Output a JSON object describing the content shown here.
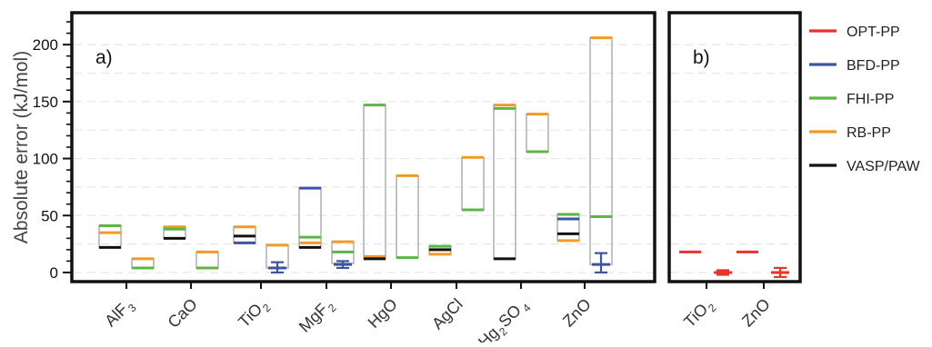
{
  "chart_data": {
    "type": "box",
    "ylabel": "Absolute error (kJ/mol)",
    "ylim": [
      -8,
      228
    ],
    "yticks": [
      0,
      50,
      100,
      150,
      200
    ],
    "grid": {
      "horizontal_dashed": true,
      "minor_tick_step": 10
    },
    "legend": {
      "placement": "right",
      "entries": [
        {
          "name": "OPT-PP",
          "color": "#e8332a"
        },
        {
          "name": "BFD-PP",
          "color": "#3b55a4"
        },
        {
          "name": "FHI-PP",
          "color": "#5cb646"
        },
        {
          "name": "RB-PP",
          "color": "#f39a24"
        },
        {
          "name": "VASP/PAW",
          "color": "#111111"
        }
      ]
    },
    "panels": [
      {
        "label": "a)",
        "categories": [
          {
            "base": "AlF",
            "sub": "3"
          },
          {
            "base": "CaO",
            "sub": ""
          },
          {
            "base": "TiO",
            "sub": "2"
          },
          {
            "base": "MgF",
            "sub": "2"
          },
          {
            "base": "HgO",
            "sub": ""
          },
          {
            "base": "AgCl",
            "sub": ""
          },
          {
            "base": "Hg",
            "sub": "2",
            "base2": "SO",
            "sub2": "4"
          },
          {
            "base": "ZnO",
            "sub": ""
          }
        ],
        "groups": [
          {
            "category": 0,
            "offset": -1,
            "box": [
              22,
              41
            ],
            "marks": {
              "FHI-PP": 41,
              "RB-PP": 35,
              "VASP/PAW": 22
            }
          },
          {
            "category": 0,
            "offset": 1,
            "box": [
              4,
              12
            ],
            "marks": {
              "RB-PP": 12,
              "FHI-PP": 4
            }
          },
          {
            "category": 1,
            "offset": -1,
            "box": [
              30,
              40
            ],
            "marks": {
              "RB-PP": 40,
              "FHI-PP": 38,
              "VASP/PAW": 30
            }
          },
          {
            "category": 1,
            "offset": 1,
            "box": [
              4,
              18
            ],
            "marks": {
              "RB-PP": 18,
              "FHI-PP": 4
            }
          },
          {
            "category": 2,
            "offset": -1,
            "box": [
              26,
              40
            ],
            "marks": {
              "RB-PP": 40,
              "VASP/PAW": 32,
              "BFD-PP": 26
            }
          },
          {
            "category": 2,
            "offset": 1,
            "box": [
              4,
              24
            ],
            "marks": {
              "RB-PP": 24
            },
            "errorbar": {
              "series": "BFD-PP",
              "center": 4,
              "low": 0,
              "high": 9
            }
          },
          {
            "category": 3,
            "offset": -1,
            "box": [
              22,
              74
            ],
            "marks": {
              "BFD-PP": 74,
              "FHI-PP": 31,
              "RB-PP": 26,
              "VASP/PAW": 22
            }
          },
          {
            "category": 3,
            "offset": 1,
            "box": [
              8,
              27
            ],
            "marks": {
              "RB-PP": 27,
              "FHI-PP": 18
            },
            "errorbar": {
              "series": "BFD-PP",
              "center": 7,
              "low": 4,
              "high": 10
            }
          },
          {
            "category": 4,
            "offset": -1,
            "box": [
              12,
              147
            ],
            "marks": {
              "FHI-PP": 147,
              "RB-PP": 14,
              "VASP/PAW": 12
            }
          },
          {
            "category": 4,
            "offset": 1,
            "box": [
              13,
              85
            ],
            "marks": {
              "RB-PP": 85,
              "FHI-PP": 13
            }
          },
          {
            "category": 5,
            "offset": -1,
            "box": [
              16,
              23
            ],
            "marks": {
              "FHI-PP": 23,
              "VASP/PAW": 20,
              "RB-PP": 16
            }
          },
          {
            "category": 5,
            "offset": 1,
            "box": [
              55,
              101
            ],
            "marks": {
              "RB-PP": 101,
              "FHI-PP": 55
            }
          },
          {
            "category": 6,
            "offset": -1,
            "box": [
              12,
              147
            ],
            "marks": {
              "RB-PP": 147,
              "FHI-PP": 144,
              "VASP/PAW": 12
            }
          },
          {
            "category": 6,
            "offset": 1,
            "box": [
              106,
              139
            ],
            "marks": {
              "RB-PP": 139,
              "FHI-PP": 106
            }
          },
          {
            "category": 7,
            "offset": -1,
            "box": [
              28,
              51
            ],
            "marks": {
              "FHI-PP": 51,
              "BFD-PP": 47,
              "VASP/PAW": 34,
              "RB-PP": 28
            }
          },
          {
            "category": 7,
            "offset": 1,
            "box": [
              7,
              206
            ],
            "marks": {
              "RB-PP": 206,
              "FHI-PP": 49
            },
            "errorbar": {
              "series": "BFD-PP",
              "center": 7,
              "low": 0,
              "high": 17
            }
          }
        ]
      },
      {
        "label": "b)",
        "categories": [
          {
            "base": "TiO",
            "sub": "2"
          },
          {
            "base": "ZnO",
            "sub": ""
          }
        ],
        "groups": [
          {
            "category": 0,
            "offset": -1,
            "marks": {
              "OPT-PP": 18
            }
          },
          {
            "category": 0,
            "offset": 1,
            "errorbar": {
              "series": "OPT-PP",
              "center": 0,
              "low": -2,
              "high": 2
            }
          },
          {
            "category": 1,
            "offset": -1,
            "marks": {
              "OPT-PP": 18
            }
          },
          {
            "category": 1,
            "offset": 1,
            "errorbar": {
              "series": "OPT-PP",
              "center": 0,
              "low": -4,
              "high": 4
            }
          }
        ]
      }
    ]
  }
}
